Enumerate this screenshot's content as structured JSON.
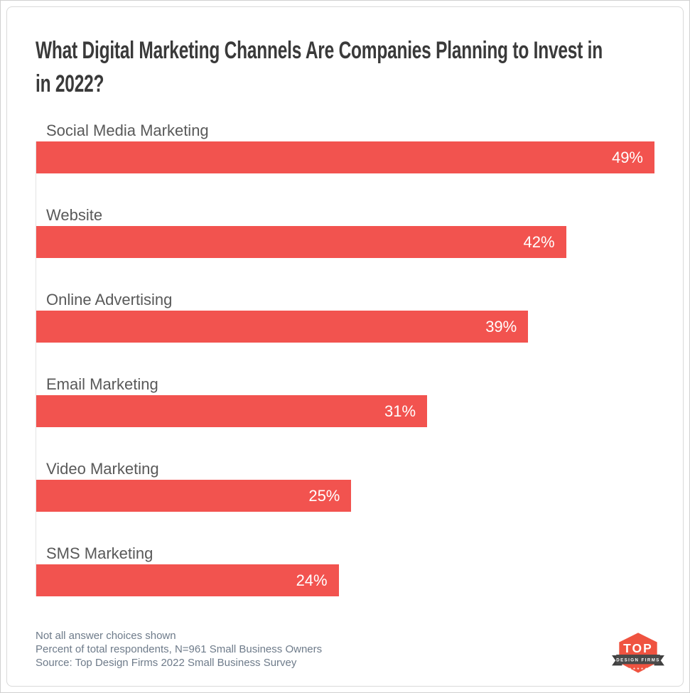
{
  "header": {
    "title": "What Digital Marketing Channels Are Companies Planning to Invest in\nin 2022?"
  },
  "chart_data": {
    "type": "bar",
    "orientation": "horizontal",
    "title": "What Digital Marketing Channels Are Companies Planning to Invest in in 2022?",
    "categories": [
      "Social Media Marketing",
      "Website",
      "Online Advertising",
      "Email Marketing",
      "Video Marketing",
      "SMS Marketing"
    ],
    "values": [
      49,
      42,
      39,
      31,
      25,
      24
    ],
    "value_labels": [
      "49%",
      "42%",
      "39%",
      "31%",
      "25%",
      "24%"
    ],
    "xlim": [
      0,
      49
    ],
    "grid": false,
    "legend": false,
    "value_label_position": "inside-end",
    "bar_color": "#F2534F",
    "value_label_color": "#FFFFFF"
  },
  "footer": {
    "notes": [
      "Not all answer choices shown",
      "Percent of total respondents, N=961 Small Business Owners",
      "Source: Top Design Firms 2022 Small Business Survey"
    ]
  },
  "logo": {
    "alt": "Top Design Firms",
    "line1": "TOP",
    "line2": "DESIGN FIRMS",
    "stars": "★ ★ ★ ★ ★",
    "badge_color": "#EF5340",
    "ribbon_color": "#4A4A4A"
  },
  "colors": {
    "bar": "#F2534F",
    "title_text": "#3A3A3A",
    "category_text": "#595959",
    "value_text": "#FFFFFF",
    "footer_text": "#6E7B8A",
    "axis_line": "#E3E3E3",
    "card_border": "#D9D9D9"
  }
}
